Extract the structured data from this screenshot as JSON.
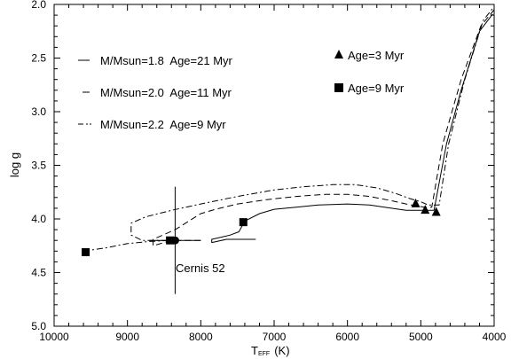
{
  "chart_data": {
    "type": "line",
    "xlabel": "T",
    "xlabel_sub": "EFF",
    "xlabel_unit": "(K)",
    "ylabel": "log g",
    "xlim": [
      10000,
      4000
    ],
    "ylim": [
      2.0,
      5.0
    ],
    "y_inverted": true,
    "x_reversed": true,
    "xticks": [
      10000,
      9000,
      8000,
      7000,
      6000,
      5000,
      4000
    ],
    "xtick_labels": [
      "10000",
      "9000",
      "8000",
      "7000",
      "6000",
      "5000",
      "4000"
    ],
    "yticks": [
      2.0,
      2.5,
      3.0,
      3.5,
      4.0,
      4.5,
      5.0
    ],
    "ytick_labels": [
      "2.0",
      "2.5",
      "3.0",
      "3.5",
      "4.0",
      "4.5",
      "5.0"
    ],
    "grid": false,
    "series": [
      {
        "name": "M/Msun=1.8  Age=21 Myr",
        "style": "solid",
        "points": [
          [
            7250,
            4.19
          ],
          [
            7650,
            4.19
          ],
          [
            7850,
            4.22
          ],
          [
            7850,
            4.19
          ],
          [
            7600,
            4.15
          ],
          [
            7480,
            4.12
          ],
          [
            7400,
            4.02
          ],
          [
            7200,
            3.95
          ],
          [
            7000,
            3.91
          ],
          [
            6700,
            3.89
          ],
          [
            6400,
            3.87
          ],
          [
            6000,
            3.86
          ],
          [
            5700,
            3.87
          ],
          [
            5400,
            3.9
          ],
          [
            5200,
            3.92
          ],
          [
            5050,
            3.92
          ],
          [
            4900,
            3.92
          ],
          [
            4820,
            3.92
          ],
          [
            4650,
            3.3
          ],
          [
            4450,
            2.8
          ],
          [
            4200,
            2.25
          ],
          [
            4020,
            2.09
          ]
        ]
      },
      {
        "name": "M/Msun=2.0  Age=11 Myr",
        "style": "dashed",
        "points": [
          [
            8000,
            4.2
          ],
          [
            8400,
            4.2
          ],
          [
            8650,
            4.25
          ],
          [
            8650,
            4.19
          ],
          [
            8350,
            4.1
          ],
          [
            8000,
            3.95
          ],
          [
            7800,
            3.91
          ],
          [
            7500,
            3.86
          ],
          [
            7100,
            3.82
          ],
          [
            6700,
            3.79
          ],
          [
            6300,
            3.77
          ],
          [
            6000,
            3.77
          ],
          [
            5700,
            3.79
          ],
          [
            5400,
            3.83
          ],
          [
            5200,
            3.86
          ],
          [
            5050,
            3.88
          ],
          [
            4950,
            3.89
          ],
          [
            4850,
            3.89
          ],
          [
            4700,
            3.3
          ],
          [
            4450,
            2.7
          ],
          [
            4180,
            2.2
          ],
          [
            4000,
            2.05
          ]
        ]
      },
      {
        "name": "M/Msun=2.2  Age=9 Myr",
        "style": "dashdot",
        "points": [
          [
            9600,
            4.3
          ],
          [
            9300,
            4.27
          ],
          [
            9000,
            4.23
          ],
          [
            8700,
            4.21
          ],
          [
            8400,
            4.2
          ],
          [
            8800,
            4.2
          ],
          [
            8950,
            4.15
          ],
          [
            8950,
            4.04
          ],
          [
            8750,
            3.98
          ],
          [
            8400,
            3.92
          ],
          [
            8000,
            3.86
          ],
          [
            7500,
            3.79
          ],
          [
            7000,
            3.73
          ],
          [
            6600,
            3.7
          ],
          [
            6200,
            3.68
          ],
          [
            5900,
            3.68
          ],
          [
            5600,
            3.71
          ],
          [
            5350,
            3.76
          ],
          [
            5150,
            3.81
          ],
          [
            5000,
            3.84
          ],
          [
            4900,
            3.87
          ],
          [
            4750,
            3.87
          ],
          [
            4620,
            3.3
          ],
          [
            4400,
            2.7
          ],
          [
            4150,
            2.15
          ],
          [
            4000,
            2.02
          ]
        ]
      }
    ],
    "markers": {
      "age3": {
        "label": "Age=3 Myr",
        "shape": "triangle",
        "points": [
          [
            5070,
            3.85
          ],
          [
            4940,
            3.91
          ],
          [
            4790,
            3.93
          ]
        ]
      },
      "age9": {
        "label": "Age=9 Myr",
        "shape": "square",
        "points": [
          [
            9570,
            4.31
          ],
          [
            8420,
            4.2
          ],
          [
            7420,
            4.03
          ]
        ]
      }
    },
    "star": {
      "label": "Cernis 52",
      "teff": 8350,
      "logg": 4.2,
      "teff_err": 350,
      "logg_err": 0.5
    }
  }
}
